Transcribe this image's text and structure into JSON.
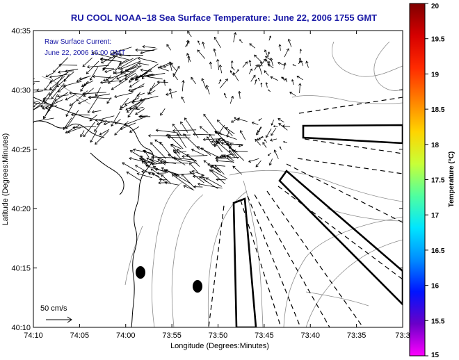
{
  "title": "RU COOL  NOAA–18  Sea Surface Temperature:  June 22, 2006 1755 GMT",
  "inset_line1": "Raw Surface Current:",
  "inset_line2": "June 22, 2006 16:00 GMT",
  "scale_label": "50 cm/s",
  "xlabel": "Longitude (Degrees:Minutes)",
  "ylabel": "Latitude (Degrees:Minutes)",
  "x_ticks": [
    "74:10",
    "74:05",
    "74:00",
    "73:55",
    "73:50",
    "73:45",
    "73:40",
    "73:35",
    "73:3"
  ],
  "y_ticks": [
    "40:35",
    "40:30",
    "40:25",
    "40:20",
    "40:15",
    "40:10"
  ],
  "colorbar": {
    "label": "Temperature (°C)",
    "ticks": [
      "20",
      "19.5",
      "19",
      "18.5",
      "18",
      "17.5",
      "17",
      "16.5",
      "16",
      "15.5",
      "15"
    ],
    "colors": [
      "#7f0000",
      "#d60000",
      "#ff2a00",
      "#ff7f00",
      "#ffd400",
      "#c8ff37",
      "#50ff9f",
      "#00e6ff",
      "#008cff",
      "#0014ff",
      "#6a00c8",
      "#ff00ff"
    ]
  }
}
